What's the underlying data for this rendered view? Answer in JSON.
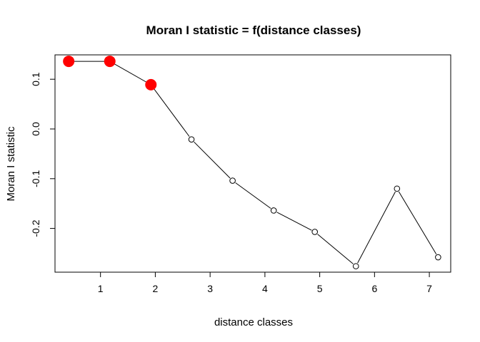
{
  "chart_data": {
    "type": "line",
    "title": "Moran I statistic = f(distance classes)",
    "xlabel": "distance classes",
    "ylabel": "Moran I statistic",
    "x_ticks": [
      1,
      2,
      3,
      4,
      5,
      6,
      7
    ],
    "y_ticks": [
      -0.2,
      -0.1,
      0.0,
      0.1
    ],
    "y_tick_labels": [
      "-0.2",
      "-0.1",
      "0.0",
      "0.1"
    ],
    "xlim": [
      0.17,
      7.39
    ],
    "ylim": [
      -0.288,
      0.149
    ],
    "grid": false,
    "series": [
      {
        "x": [
          0.42,
          1.17,
          1.92,
          2.66,
          3.41,
          4.16,
          4.91,
          5.66,
          6.41,
          7.16
        ],
        "y": [
          0.136,
          0.136,
          0.089,
          -0.021,
          -0.104,
          -0.164,
          -0.207,
          -0.276,
          -0.12,
          -0.258
        ],
        "significant": [
          true,
          true,
          true,
          false,
          false,
          false,
          false,
          false,
          false,
          false
        ]
      }
    ],
    "colors": {
      "line": "#000000",
      "significant_point": "#ff0000",
      "open_point_fill": "#ffffff",
      "open_point_stroke": "#000000"
    }
  }
}
